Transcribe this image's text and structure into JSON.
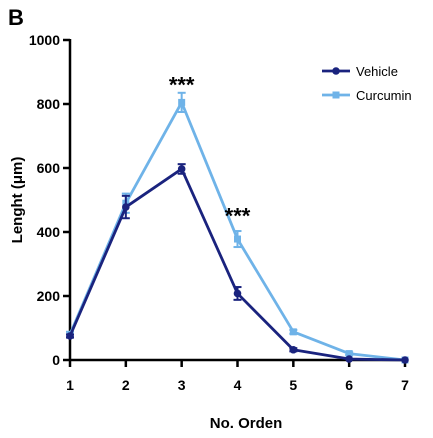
{
  "panel_label": "B",
  "chart_data": {
    "type": "line",
    "title": "",
    "xlabel": "No. Orden",
    "ylabel": "Lenght (μm)",
    "x": [
      1,
      2,
      3,
      4,
      5,
      6,
      7
    ],
    "xlim": [
      1,
      7
    ],
    "ylim": [
      0,
      1000
    ],
    "xticks": [
      "1",
      "2",
      "3",
      "4",
      "5",
      "6",
      "7"
    ],
    "yticks": [
      "0",
      "200",
      "400",
      "600",
      "800",
      "1000"
    ],
    "grid": false,
    "legend_position": "top-right",
    "series": [
      {
        "name": "Vehicle",
        "color": "#1a237e",
        "marker": "circle",
        "values": [
          75,
          478,
          597,
          208,
          32,
          3,
          0
        ],
        "errors": [
          5,
          35,
          15,
          20,
          5,
          2,
          1
        ]
      },
      {
        "name": "Curcumin",
        "color": "#6fb3e8",
        "marker": "square",
        "values": [
          80,
          490,
          805,
          378,
          88,
          20,
          0
        ],
        "errors": [
          8,
          30,
          30,
          25,
          6,
          4,
          1
        ]
      }
    ],
    "annotations": [
      {
        "text": "***",
        "x": 3,
        "y": 880
      },
      {
        "text": "***",
        "x": 4,
        "y": 470
      }
    ]
  }
}
